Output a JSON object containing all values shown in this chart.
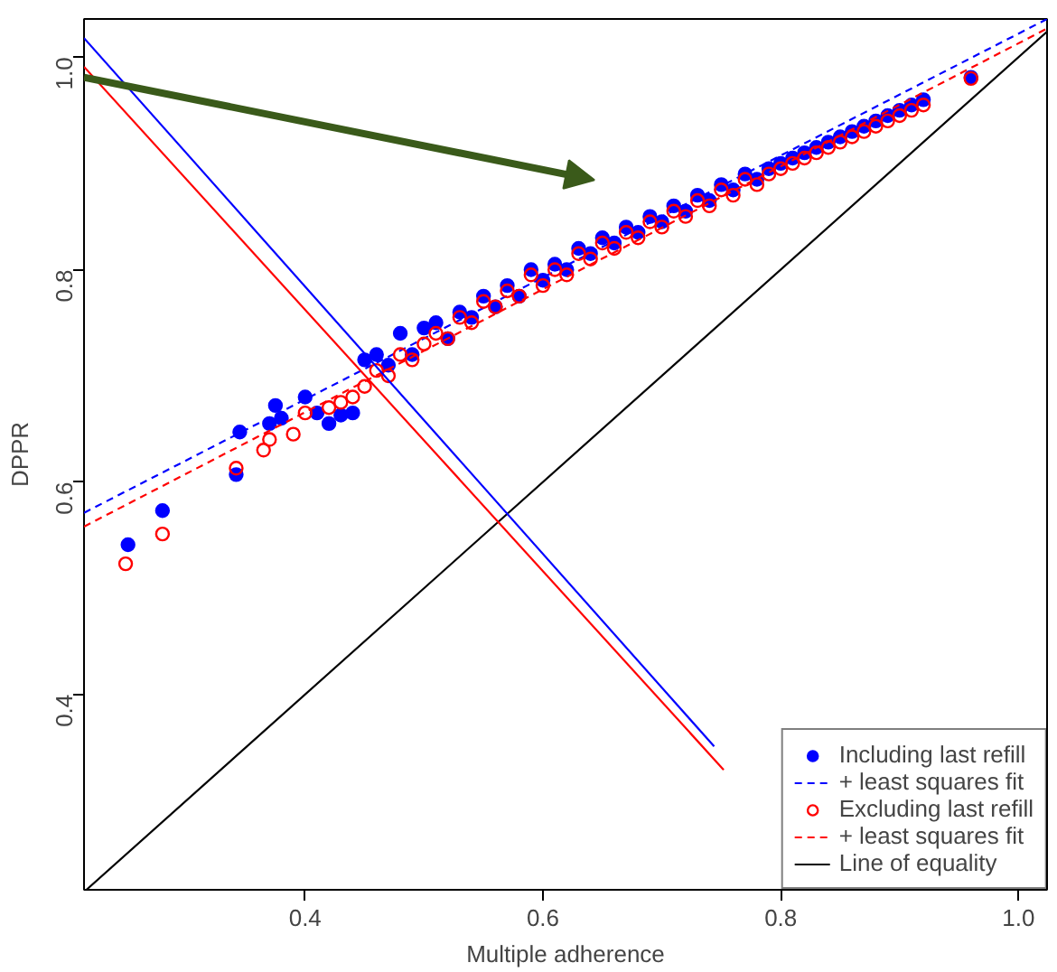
{
  "chart_data": {
    "type": "scatter",
    "xlabel": "Multiple adherence",
    "ylabel": "DPPR",
    "xlim": [
      0.214,
      1.024
    ],
    "ylim": [
      0.216,
      1.036
    ],
    "xticks": [
      0.4,
      0.6,
      0.8,
      {
        "value": 1,
        "label": "1.0"
      }
    ],
    "yticks": [
      0.4,
      0.6,
      0.8,
      {
        "value": 1,
        "label": "1.0"
      }
    ],
    "grid": false,
    "legend": "bottom right",
    "series": [
      {
        "name": "Including last refill",
        "color": "#0000ff",
        "marker": "circle",
        "x": [
          0.251,
          0.28,
          0.342,
          0.345,
          0.37,
          0.375,
          0.38,
          0.4,
          0.41,
          0.42,
          0.43,
          0.44,
          0.45,
          0.46,
          0.47,
          0.48,
          0.49,
          0.5,
          0.51,
          0.52,
          0.53,
          0.54,
          0.55,
          0.56,
          0.57,
          0.58,
          0.59,
          0.6,
          0.61,
          0.62,
          0.63,
          0.64,
          0.65,
          0.66,
          0.67,
          0.68,
          0.69,
          0.7,
          0.71,
          0.72,
          0.73,
          0.74,
          0.75,
          0.76,
          0.77,
          0.78,
          0.79,
          0.8,
          0.81,
          0.82,
          0.83,
          0.84,
          0.85,
          0.86,
          0.87,
          0.88,
          0.89,
          0.9,
          0.91,
          0.92,
          0.96
        ],
        "values": [
          0.541,
          0.573,
          0.607,
          0.647,
          0.655,
          0.672,
          0.66,
          0.68,
          0.665,
          0.655,
          0.663,
          0.665,
          0.715,
          0.72,
          0.71,
          0.74,
          0.72,
          0.745,
          0.75,
          0.735,
          0.76,
          0.755,
          0.775,
          0.765,
          0.785,
          0.775,
          0.8,
          0.79,
          0.805,
          0.8,
          0.82,
          0.815,
          0.83,
          0.825,
          0.84,
          0.835,
          0.85,
          0.845,
          0.86,
          0.855,
          0.87,
          0.865,
          0.88,
          0.875,
          0.89,
          0.885,
          0.895,
          0.9,
          0.905,
          0.91,
          0.915,
          0.92,
          0.925,
          0.93,
          0.935,
          0.94,
          0.945,
          0.95,
          0.955,
          0.96,
          0.981
        ]
      },
      {
        "name": "+ least squares fit",
        "type": "line",
        "line_style": "dashed",
        "color": "#0000ff",
        "x": [
          0.214,
          1.024
        ],
        "values": [
          0.571,
          1.036
        ]
      },
      {
        "name": "Excluding last refill",
        "color": "#ff0000",
        "marker": "circle",
        "x": [
          0.249,
          0.28,
          0.342,
          0.365,
          0.37,
          0.39,
          0.4,
          0.42,
          0.43,
          0.44,
          0.45,
          0.46,
          0.47,
          0.48,
          0.49,
          0.5,
          0.51,
          0.52,
          0.53,
          0.54,
          0.55,
          0.56,
          0.57,
          0.58,
          0.59,
          0.6,
          0.61,
          0.62,
          0.63,
          0.64,
          0.65,
          0.66,
          0.67,
          0.68,
          0.69,
          0.7,
          0.71,
          0.72,
          0.73,
          0.74,
          0.75,
          0.76,
          0.77,
          0.78,
          0.79,
          0.8,
          0.81,
          0.82,
          0.83,
          0.84,
          0.85,
          0.86,
          0.87,
          0.88,
          0.89,
          0.9,
          0.91,
          0.92,
          0.96
        ],
        "values": [
          0.523,
          0.551,
          0.613,
          0.63,
          0.64,
          0.645,
          0.665,
          0.67,
          0.675,
          0.68,
          0.69,
          0.705,
          0.7,
          0.72,
          0.715,
          0.73,
          0.74,
          0.735,
          0.755,
          0.75,
          0.77,
          0.765,
          0.78,
          0.775,
          0.795,
          0.785,
          0.8,
          0.795,
          0.815,
          0.81,
          0.825,
          0.82,
          0.835,
          0.83,
          0.845,
          0.84,
          0.855,
          0.85,
          0.865,
          0.86,
          0.875,
          0.87,
          0.885,
          0.88,
          0.89,
          0.895,
          0.9,
          0.905,
          0.91,
          0.915,
          0.92,
          0.925,
          0.93,
          0.935,
          0.94,
          0.945,
          0.95,
          0.955,
          0.98
        ]
      },
      {
        "name": "+ least squares fit",
        "type": "line",
        "line_style": "dashed",
        "color": "#ff0000",
        "x": [
          0.214,
          1.024
        ],
        "values": [
          0.558,
          1.027
        ]
      },
      {
        "name": "Line of equality",
        "type": "line",
        "line_style": "solid",
        "color": "#000000",
        "x": [
          0.216,
          1.024
        ],
        "values": [
          0.216,
          1.024
        ]
      },
      {
        "type": "line",
        "line_style": "solid",
        "color": "#0000ff",
        "x": [
          0.214,
          0.744
        ],
        "values": [
          1.018,
          0.351
        ]
      },
      {
        "type": "line",
        "line_style": "solid",
        "color": "#ff0000",
        "x": [
          0.214,
          0.752
        ],
        "values": [
          0.991,
          0.329
        ]
      }
    ]
  }
}
